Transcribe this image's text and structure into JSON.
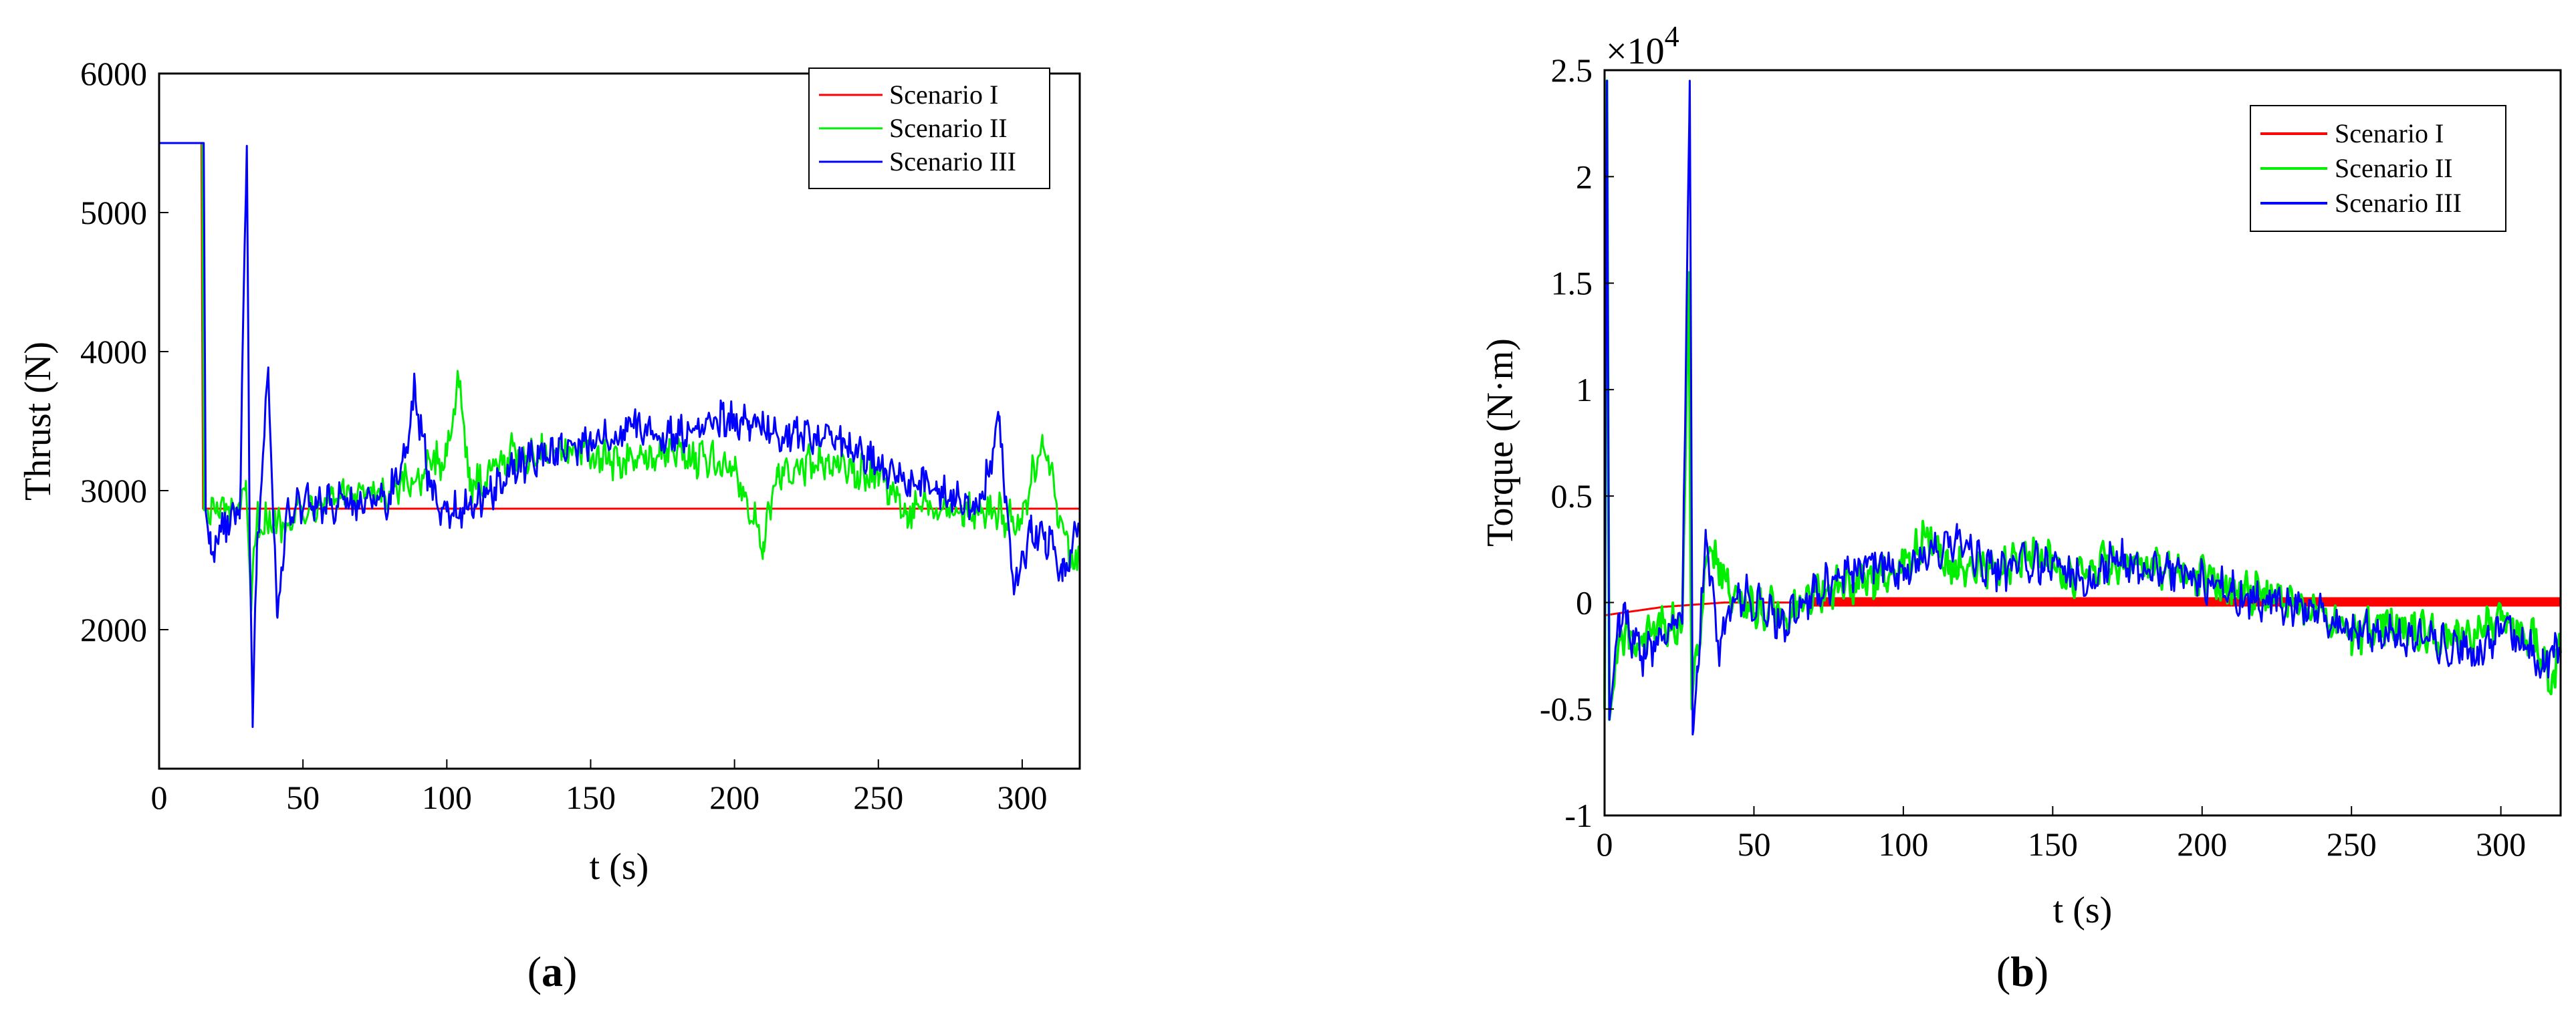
{
  "figure": {
    "panel_a_label_open": "(",
    "panel_a_label_letter": "a",
    "panel_a_label_close": ")",
    "panel_b_label_open": "(",
    "panel_b_label_letter": "b",
    "panel_b_label_close": ")"
  },
  "colors": {
    "scenario_1": "#ff0000",
    "scenario_2": "#00ee00",
    "scenario_3": "#0000ff"
  },
  "chart_data": [
    {
      "id": "a",
      "type": "line",
      "xlabel": "t (s)",
      "ylabel": "Thrust (N)",
      "xlim": [
        0,
        320
      ],
      "ylim": [
        1000,
        6000
      ],
      "xticks": [
        0,
        50,
        100,
        150,
        200,
        250,
        300
      ],
      "xtick_labels": [
        "0",
        "50",
        "100",
        "150",
        "200",
        "250",
        "300"
      ],
      "yticks": [
        2000,
        3000,
        4000,
        5000,
        6000
      ],
      "ytick_labels": [
        "2000",
        "3000",
        "4000",
        "5000",
        "6000"
      ],
      "legend_position": "top-right",
      "series": [
        {
          "name": "Scenario I",
          "color": "#ff0000",
          "width": 3,
          "points": [
            [
              0,
              5500
            ],
            [
              14.7,
              5500
            ],
            [
              15.3,
              2870
            ],
            [
              320,
              2870
            ]
          ]
        },
        {
          "name": "Scenario II",
          "color": "#00ee00",
          "width": 3,
          "base": 2850,
          "points": [
            [
              0,
              5500
            ],
            [
              15,
              5500
            ],
            [
              15.6,
              2860
            ],
            [
              28,
              2850
            ],
            [
              30,
              3000
            ],
            [
              32,
              2200
            ],
            [
              34,
              2800
            ],
            [
              40,
              2750
            ],
            [
              60,
              2980
            ],
            [
              80,
              2950
            ],
            [
              100,
              3250
            ],
            [
              104,
              3820
            ],
            [
              108,
              3000
            ],
            [
              120,
              3250
            ],
            [
              140,
              3300
            ],
            [
              160,
              3200
            ],
            [
              180,
              3280
            ],
            [
              200,
              3150
            ],
            [
              210,
              2630
            ],
            [
              215,
              3100
            ],
            [
              230,
              3200
            ],
            [
              250,
              3100
            ],
            [
              260,
              2850
            ],
            [
              280,
              2880
            ],
            [
              300,
              2800
            ],
            [
              307,
              3400
            ],
            [
              312,
              2900
            ],
            [
              318,
              2450
            ],
            [
              320,
              2600
            ]
          ]
        },
        {
          "name": "Scenario III",
          "color": "#0000ff",
          "width": 3,
          "base": 2850,
          "points": [
            [
              0,
              5500
            ],
            [
              15.5,
              5500
            ],
            [
              16.2,
              2850
            ],
            [
              18,
              2550
            ],
            [
              25,
              2850
            ],
            [
              28,
              2800
            ],
            [
              30.5,
              5480
            ],
            [
              31.5,
              2600
            ],
            [
              32.5,
              1300
            ],
            [
              34,
              2600
            ],
            [
              38,
              3820
            ],
            [
              41,
              2100
            ],
            [
              45,
              2900
            ],
            [
              60,
              2900
            ],
            [
              80,
              2950
            ],
            [
              86,
              3300
            ],
            [
              89,
              3750
            ],
            [
              93,
              3150
            ],
            [
              96,
              2900
            ],
            [
              100,
              2850
            ],
            [
              108,
              2900
            ],
            [
              115,
              3000
            ],
            [
              125,
              3200
            ],
            [
              140,
              3300
            ],
            [
              150,
              3350
            ],
            [
              165,
              3450
            ],
            [
              180,
              3400
            ],
            [
              195,
              3500
            ],
            [
              205,
              3500
            ],
            [
              220,
              3400
            ],
            [
              235,
              3350
            ],
            [
              245,
              3250
            ],
            [
              258,
              3100
            ],
            [
              270,
              3000
            ],
            [
              285,
              2850
            ],
            [
              292,
              3500
            ],
            [
              297,
              2300
            ],
            [
              303,
              2700
            ],
            [
              308,
              2700
            ],
            [
              314,
              2350
            ],
            [
              320,
              2850
            ]
          ]
        }
      ]
    },
    {
      "id": "b",
      "type": "line",
      "xlabel": "t (s)",
      "ylabel": "Torque (N·m)",
      "axis_multiplier": "×10",
      "axis_multiplier_exponent": "4",
      "xlim": [
        0,
        320
      ],
      "ylim": [
        -1,
        2.5
      ],
      "xticks": [
        0,
        50,
        100,
        150,
        200,
        250,
        300
      ],
      "xtick_labels": [
        "0",
        "50",
        "100",
        "150",
        "200",
        "250",
        "300"
      ],
      "yticks": [
        -1,
        -0.5,
        0,
        0.5,
        1,
        1.5,
        2,
        2.5
      ],
      "ytick_labels": [
        "-1",
        "-0.5",
        "0",
        "0.5",
        "1",
        "1.5",
        "2",
        "2.5"
      ],
      "legend_position": "top-right",
      "series": [
        {
          "name": "Scenario I",
          "color": "#ff0000",
          "width": 3,
          "band": [
            [
              70,
              320,
              0.0,
              0.025
            ]
          ],
          "points": [
            [
              0,
              -0.06
            ],
            [
              5,
              -0.05
            ],
            [
              20,
              -0.02
            ],
            [
              30,
              -0.01
            ],
            [
              40,
              0.0
            ],
            [
              60,
              0.0
            ],
            [
              75,
              0.0
            ],
            [
              320,
              0.0
            ]
          ]
        },
        {
          "name": "Scenario II",
          "color": "#00ee00",
          "width": 4,
          "points": [
            [
              0,
              -0.5
            ],
            [
              0.8,
              2.45
            ],
            [
              1.6,
              -0.55
            ],
            [
              5,
              -0.15
            ],
            [
              12,
              -0.18
            ],
            [
              20,
              -0.1
            ],
            [
              26,
              -0.1
            ],
            [
              28.2,
              1.55
            ],
            [
              29.2,
              -0.5
            ],
            [
              31,
              -0.2
            ],
            [
              35,
              0.25
            ],
            [
              45,
              0.0
            ],
            [
              60,
              -0.05
            ],
            [
              70,
              0.05
            ],
            [
              90,
              0.1
            ],
            [
              100,
              0.15
            ],
            [
              108,
              0.35
            ],
            [
              115,
              0.15
            ],
            [
              130,
              0.15
            ],
            [
              145,
              0.25
            ],
            [
              155,
              0.12
            ],
            [
              170,
              0.2
            ],
            [
              190,
              0.15
            ],
            [
              210,
              0.08
            ],
            [
              225,
              0.0
            ],
            [
              240,
              -0.05
            ],
            [
              250,
              -0.15
            ],
            [
              260,
              -0.1
            ],
            [
              270,
              -0.12
            ],
            [
              285,
              -0.18
            ],
            [
              300,
              -0.08
            ],
            [
              310,
              -0.15
            ],
            [
              318,
              -0.38
            ],
            [
              320,
              -0.15
            ]
          ]
        },
        {
          "name": "Scenario III",
          "color": "#0000ff",
          "width": 3,
          "points": [
            [
              0,
              -0.5
            ],
            [
              0.8,
              2.45
            ],
            [
              1.6,
              -0.55
            ],
            [
              5,
              -0.05
            ],
            [
              12,
              -0.25
            ],
            [
              20,
              -0.15
            ],
            [
              26,
              -0.1
            ],
            [
              28.5,
              2.45
            ],
            [
              29.5,
              -0.62
            ],
            [
              31,
              -0.3
            ],
            [
              34,
              0.3
            ],
            [
              38,
              -0.2
            ],
            [
              45,
              0.05
            ],
            [
              60,
              -0.1
            ],
            [
              70,
              0.05
            ],
            [
              90,
              0.2
            ],
            [
              100,
              0.15
            ],
            [
              110,
              0.25
            ],
            [
              118,
              0.3
            ],
            [
              130,
              0.15
            ],
            [
              145,
              0.2
            ],
            [
              160,
              0.1
            ],
            [
              170,
              0.2
            ],
            [
              190,
              0.15
            ],
            [
              210,
              0.05
            ],
            [
              225,
              0.0
            ],
            [
              240,
              -0.05
            ],
            [
              250,
              -0.12
            ],
            [
              265,
              -0.15
            ],
            [
              280,
              -0.2
            ],
            [
              292,
              -0.25
            ],
            [
              300,
              -0.1
            ],
            [
              308,
              -0.2
            ],
            [
              314,
              -0.3
            ],
            [
              320,
              -0.2
            ]
          ]
        }
      ]
    }
  ]
}
